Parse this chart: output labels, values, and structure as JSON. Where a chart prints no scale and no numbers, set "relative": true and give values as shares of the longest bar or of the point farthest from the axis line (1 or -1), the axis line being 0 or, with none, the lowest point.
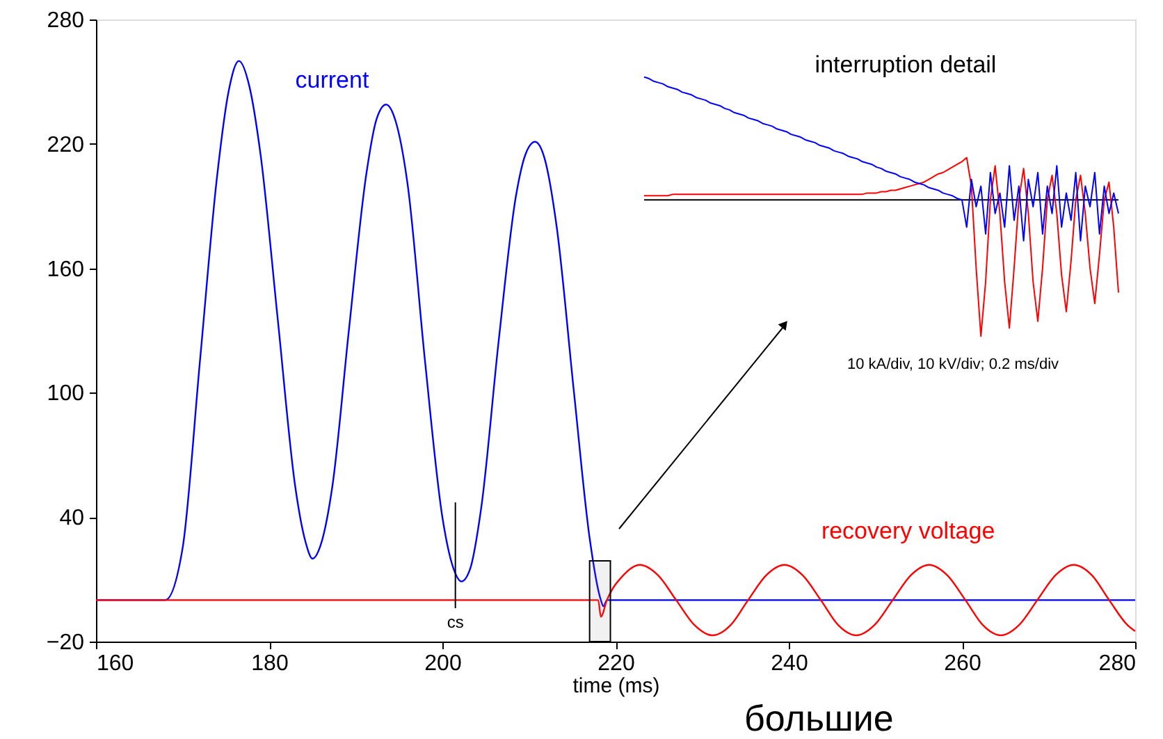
{
  "chart_data": [
    {
      "type": "line",
      "xlabel": "time (ms)",
      "xlim": [
        160,
        280
      ],
      "ylim": [
        -20,
        280
      ],
      "xticks": [
        160,
        180,
        200,
        220,
        240,
        260,
        280
      ],
      "yticks": [
        -20,
        40,
        100,
        160,
        220,
        280
      ],
      "grid": false,
      "series": [
        {
          "name": "current",
          "color": "#0000ff",
          "x": [
            160,
            168,
            170,
            172,
            174,
            175.3,
            176.5,
            177.7,
            179,
            181,
            183,
            184.2,
            185,
            185.9,
            187.3,
            189.2,
            191.2,
            192.4,
            193.5,
            194.6,
            196,
            198,
            200,
            201.3,
            202.2,
            203.2,
            204.5,
            206.5,
            208.5,
            209.6,
            210.7,
            211.8,
            213.2,
            215.2,
            217,
            218.3,
            218.6,
            219,
            280
          ],
          "values": [
            0,
            0,
            25,
            115,
            205,
            245,
            260,
            248,
            215,
            135,
            55,
            28,
            20,
            26,
            55,
            130,
            205,
            232,
            239,
            231,
            200,
            115,
            40,
            15,
            9,
            15,
            45,
            125,
            195,
            215,
            221,
            213,
            180,
            100,
            30,
            0,
            -3,
            0,
            0
          ]
        },
        {
          "name": "recovery voltage",
          "color": "#ff0000",
          "x": [
            160,
            218,
            218.3,
            219.0,
            220.9,
            222.8,
            224.9,
            227.0,
            229.1,
            231.2,
            233.3,
            235.3,
            237.4,
            239.5,
            241.6,
            243.7,
            245.7,
            247.8,
            249.9,
            252.0,
            254.1,
            256.2,
            258.3,
            260.4,
            262.4,
            264.5,
            266.6,
            268.7,
            270.8,
            272.9,
            275.0,
            277.0,
            279.1,
            280
          ],
          "values": [
            0,
            0,
            -8,
            0,
            12,
            17,
            12,
            0,
            -12,
            -17,
            -12,
            0,
            12,
            17,
            12,
            0,
            -12,
            -17,
            -12,
            0,
            12,
            17,
            12,
            0,
            -12,
            -17,
            -12,
            0,
            12,
            17,
            12,
            0,
            -12,
            -15
          ]
        }
      ],
      "ref_lines": [
        {
          "axis": "x",
          "value": 201.5,
          "label": "cs"
        }
      ],
      "bands": [
        {
          "axis": "x",
          "from": 217,
          "to": 219.4
        }
      ],
      "annotations": [
        "большие"
      ]
    },
    {
      "type": "line",
      "relative": true,
      "title": "interruption detail",
      "tick_labels": false,
      "categories": [
        null,
        null,
        null,
        null,
        null,
        null,
        null,
        null,
        null,
        null,
        null,
        null,
        null,
        null,
        null,
        null,
        null,
        null,
        null,
        null,
        null,
        null,
        null,
        null,
        null,
        null,
        null,
        null,
        null,
        null,
        null,
        null,
        null,
        null,
        null,
        null,
        null,
        null,
        null,
        null,
        null,
        null,
        null,
        null,
        null,
        null,
        null,
        null,
        null,
        null,
        null,
        null,
        null,
        null,
        null,
        null,
        null,
        null,
        null,
        null,
        null,
        null,
        null,
        null,
        null,
        null,
        null,
        null,
        null,
        null,
        null,
        null,
        null,
        null,
        null,
        null,
        null,
        null,
        null,
        null,
        null,
        null,
        null,
        null,
        null,
        null,
        null,
        null,
        null,
        null,
        null,
        null,
        null,
        null,
        null,
        null,
        null,
        null,
        null,
        null,
        null
      ],
      "series": [
        {
          "color": "#ff0000",
          "values": [
            0.03,
            0.03,
            0.03,
            0.03,
            0.03,
            0.03,
            0.04,
            0.04,
            0.04,
            0.04,
            0.04,
            0.04,
            0.04,
            0.04,
            0.04,
            0.04,
            0.04,
            0.04,
            0.04,
            0.04,
            0.04,
            0.04,
            0.04,
            0.04,
            0.04,
            0.04,
            0.04,
            0.04,
            0.04,
            0.04,
            0.04,
            0.04,
            0.04,
            0.04,
            0.04,
            0.04,
            0.04,
            0.04,
            0.04,
            0.04,
            0.04,
            0.04,
            0.04,
            0.04,
            0.04,
            0.04,
            0.04,
            0.05,
            0.05,
            0.05,
            0.06,
            0.06,
            0.07,
            0.07,
            0.08,
            0.09,
            0.1,
            0.11,
            0.12,
            0.13,
            0.15,
            0.17,
            0.19,
            0.2,
            0.22,
            0.24,
            0.26,
            0.28,
            0.31,
            0.1,
            -0.5,
            -1.0,
            -0.6,
            0.0,
            0.25,
            -0.1,
            -0.6,
            -0.94,
            -0.5,
            0.0,
            0.23,
            -0.1,
            -0.6,
            -0.89,
            -0.5,
            0.0,
            0.18,
            -0.1,
            -0.55,
            -0.82,
            -0.45,
            0.0,
            0.18,
            -0.1,
            -0.5,
            -0.76,
            -0.4,
            0.0,
            0.13,
            -0.2,
            -0.68
          ]
        },
        {
          "color": "#0000ff",
          "values": [
            0.9,
            0.89,
            0.87,
            0.86,
            0.85,
            0.83,
            0.82,
            0.81,
            0.79,
            0.78,
            0.77,
            0.75,
            0.74,
            0.73,
            0.71,
            0.7,
            0.69,
            0.67,
            0.66,
            0.64,
            0.63,
            0.62,
            0.6,
            0.59,
            0.58,
            0.56,
            0.55,
            0.54,
            0.52,
            0.51,
            0.5,
            0.48,
            0.47,
            0.46,
            0.44,
            0.43,
            0.42,
            0.4,
            0.39,
            0.38,
            0.36,
            0.35,
            0.34,
            0.32,
            0.31,
            0.3,
            0.28,
            0.27,
            0.26,
            0.24,
            0.23,
            0.21,
            0.2,
            0.19,
            0.17,
            0.16,
            0.15,
            0.13,
            0.12,
            0.11,
            0.09,
            0.08,
            0.07,
            0.05,
            0.04,
            0.03,
            0.01,
            0,
            -0.2,
            0.15,
            -0.05,
            0.1,
            -0.25,
            0.2,
            -0.1,
            0.05,
            -0.2,
            0.25,
            -0.15,
            0.1,
            -0.3,
            0.15,
            -0.05,
            0.2,
            -0.25,
            0.1,
            -0.1,
            0.25,
            -0.2,
            0.05,
            -0.15,
            0.2,
            -0.3,
            0.1,
            -0.05,
            0.2,
            -0.25,
            0.1,
            -0.1,
            0.05,
            -0.1
          ]
        }
      ],
      "annotations": [
        "10 kA/div,  10 kV/div;  0.2 ms/div"
      ]
    }
  ]
}
